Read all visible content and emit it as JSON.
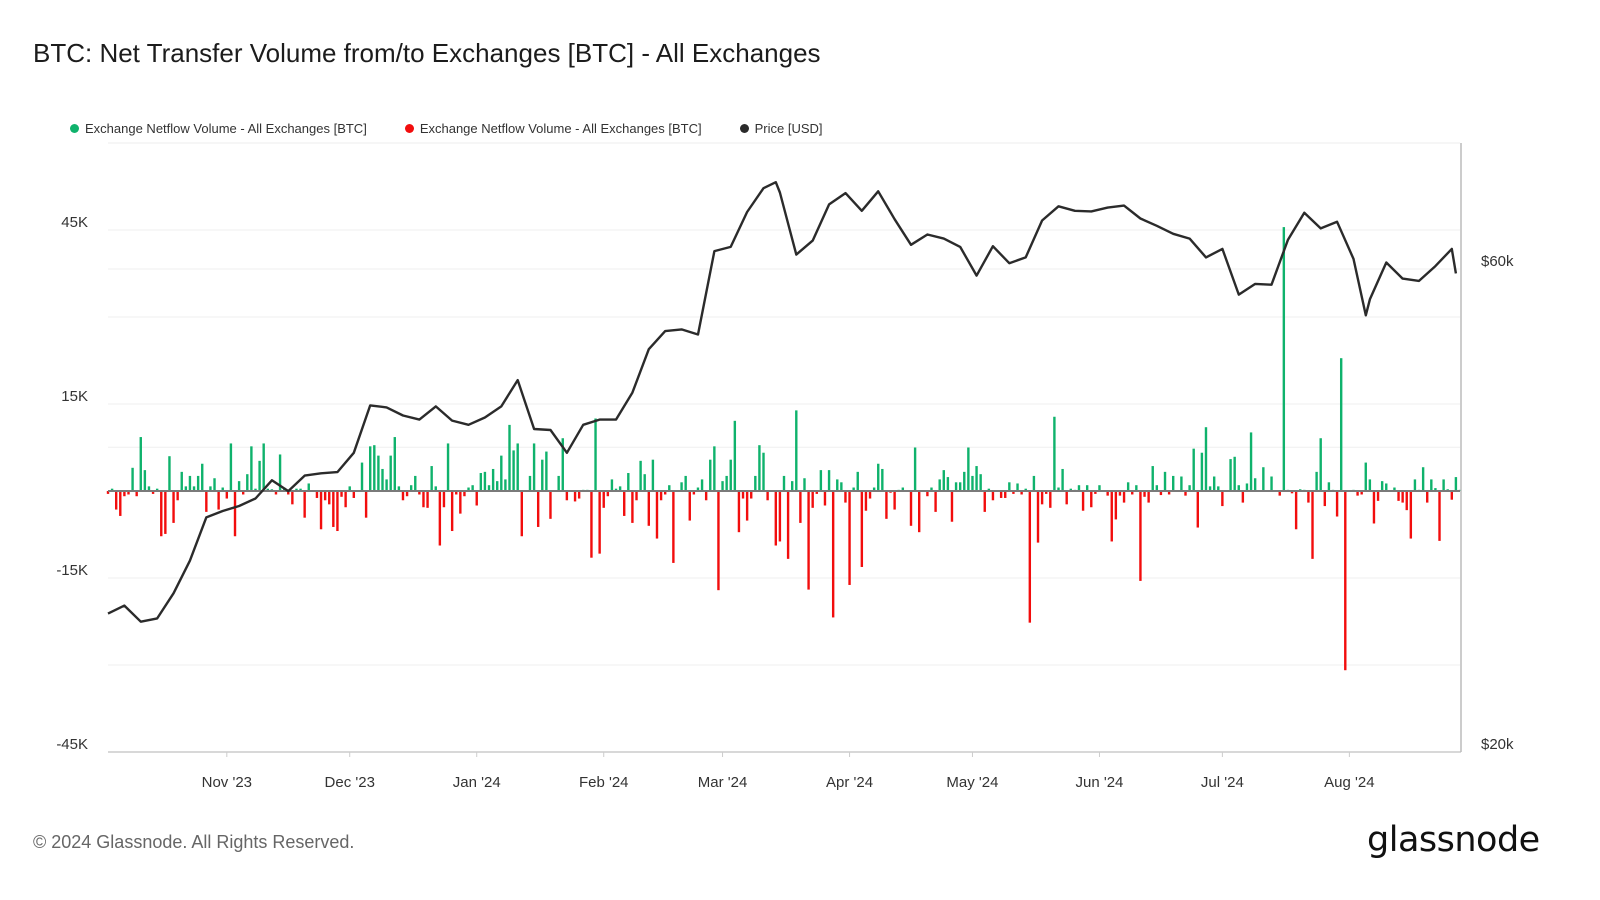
{
  "chart_data": {
    "type": "bar+line",
    "title": "BTC: Net Transfer Volume from/to Exchanges [BTC] - All Exchanges",
    "legend_position": "top-left",
    "legend": [
      {
        "label": "Exchange Netflow Volume - All Exchanges [BTC]",
        "color": "#0fb26c"
      },
      {
        "label": "Exchange Netflow Volume - All Exchanges [BTC]",
        "color": "#f20d0d"
      },
      {
        "label": "Price [USD]",
        "color": "#2b2b2b"
      }
    ],
    "grid": true,
    "x_range": [
      "2023-10-03",
      "2024-08-28"
    ],
    "interval": "1 day",
    "x_ticks": [
      {
        "date": "2023-11-01",
        "label": "Nov '23"
      },
      {
        "date": "2023-12-01",
        "label": "Dec '23"
      },
      {
        "date": "2024-01-01",
        "label": "Jan '24"
      },
      {
        "date": "2024-02-01",
        "label": "Feb '24"
      },
      {
        "date": "2024-03-01",
        "label": "Mar '24"
      },
      {
        "date": "2024-04-01",
        "label": "Apr '24"
      },
      {
        "date": "2024-05-01",
        "label": "May '24"
      },
      {
        "date": "2024-06-01",
        "label": "Jun '24"
      },
      {
        "date": "2024-07-01",
        "label": "Jul '24"
      },
      {
        "date": "2024-08-01",
        "label": "Aug '24"
      }
    ],
    "y_left": {
      "unit": "BTC",
      "range": [
        -45000,
        45000
      ],
      "gridlines": [
        -45000,
        -30000,
        -15000,
        0,
        15000,
        30000,
        45000
      ],
      "ticks": [
        {
          "value": 45000,
          "label": "45K"
        },
        {
          "value": 15000,
          "label": "15K"
        },
        {
          "value": -15000,
          "label": "-15K"
        },
        {
          "value": -45000,
          "label": "-45K"
        }
      ]
    },
    "y_right": {
      "unit": "USD",
      "scale": "log",
      "range": [
        20000,
        80000
      ],
      "gridlines": [
        20000,
        40000,
        60000
      ],
      "ticks": [
        {
          "value": 60000,
          "label": "$60k"
        },
        {
          "value": 20000,
          "label": "$20k"
        }
      ]
    },
    "positive_color": "#0fb26c",
    "negative_color": "#f20d0d",
    "price_color": "#2b2b2b",
    "netflow_btc_thousands": [
      -0.5,
      0.4,
      -3.2,
      -4.3,
      -0.9,
      -0.6,
      4.0,
      -0.9,
      9.3,
      3.6,
      0.8,
      -0.5,
      0.4,
      -7.8,
      -7.4,
      6.0,
      -5.5,
      -1.6,
      3.3,
      0.8,
      2.6,
      0.8,
      2.6,
      4.7,
      -3.6,
      0.8,
      2.2,
      -3.2,
      0.6,
      -1.3,
      8.2,
      -7.8,
      1.7,
      -0.6,
      2.9,
      7.7,
      0.4,
      5.2,
      8.2,
      0.4,
      0.3,
      -0.6,
      6.3,
      0.6,
      -0.6,
      -2.3,
      0.4,
      0.4,
      -4.6,
      1.3,
      0.1,
      -1.2,
      -6.6,
      -1.6,
      -2.3,
      -6.2,
      -6.9,
      -1.0,
      -2.8,
      0.8,
      -1.2,
      0.1,
      4.9,
      -4.6,
      7.7,
      7.9,
      6.1,
      3.8,
      2.0,
      6.1,
      9.3,
      0.8,
      -1.6,
      -0.9,
      1.0,
      2.6,
      -0.6,
      -2.8,
      -2.9,
      4.3,
      0.8,
      -9.4,
      -2.8,
      8.2,
      -6.9,
      -0.6,
      -3.9,
      -0.9,
      0.6,
      1.0,
      -2.5,
      3.1,
      3.3,
      1.0,
      3.8,
      1.7,
      6.1,
      2.0,
      11.4,
      7.0,
      8.2,
      -7.8,
      0,
      2.6,
      8.2,
      -6.2,
      5.4,
      6.8,
      -4.8,
      0,
      2.6,
      9.1,
      -1.6,
      0.1,
      -1.8,
      -1.3,
      0.2,
      0.2,
      -11.5,
      12.5,
      -10.8,
      -2.9,
      -0.9,
      2.0,
      0.4,
      0.8,
      -4.3,
      3.1,
      -5.5,
      -1.6,
      5.2,
      2.9,
      -6.0,
      5.4,
      -8.2,
      -1.6,
      -0.6,
      1.0,
      -12.4,
      0,
      1.5,
      2.6,
      -5.1,
      -0.6,
      0.6,
      2.0,
      -1.6,
      5.4,
      7.7,
      -17.1,
      1.7,
      2.6,
      5.4,
      12.1,
      -7.1,
      -1.3,
      -5.1,
      -1.3,
      2.6,
      7.9,
      6.6,
      -1.6,
      0,
      -9.4,
      -8.7,
      2.6,
      -11.7,
      1.7,
      13.9,
      -5.5,
      2.2,
      -17.0,
      -2.9,
      -0.5,
      3.6,
      -2.5,
      3.6,
      -21.8,
      2.0,
      1.5,
      -2.0,
      -16.2,
      0.6,
      3.3,
      -13.1,
      -3.4,
      -1.3,
      0.6,
      4.7,
      3.8,
      -4.8,
      -0.3,
      -3.2,
      0.2,
      0.6,
      0,
      -6.0,
      7.5,
      -7.1,
      0,
      -0.9,
      0.6,
      -3.6,
      2.0,
      3.6,
      2.4,
      -5.3,
      1.5,
      1.5,
      3.3,
      7.5,
      2.6,
      4.3,
      2.9,
      -3.6,
      0.4,
      -1.6,
      0.1,
      -1.2,
      -1.2,
      1.5,
      -0.5,
      1.3,
      -0.6,
      0.4,
      -22.7,
      2.6,
      -8.9,
      -2.3,
      -0.5,
      -2.9,
      12.8,
      0.6,
      3.8,
      -2.3,
      0.4,
      0.2,
      1.0,
      -3.4,
      1.0,
      -2.8,
      -0.5,
      1.0,
      0,
      -0.8,
      -8.7,
      -4.9,
      -0.8,
      -2.0,
      1.5,
      -0.6,
      1.0,
      -15.5,
      -1.0,
      -2.0,
      4.3,
      1.0,
      -0.7,
      3.3,
      -0.6,
      2.6,
      0,
      2.5,
      -0.8,
      1.0,
      7.3,
      -6.3,
      6.6,
      11.0,
      0.8,
      2.5,
      0.8,
      -2.6,
      0,
      5.5,
      5.9,
      1.0,
      -2.0,
      1.3,
      10.1,
      2.2,
      0,
      4.1,
      0,
      2.5,
      0,
      -0.8,
      45.5,
      0.2,
      -0.4,
      -6.6,
      0.3,
      0.2,
      -2.0,
      -11.7,
      3.3,
      9.1,
      -2.6,
      1.5,
      0.2,
      -4.4,
      22.9,
      -30.9,
      0,
      0.2,
      -0.8,
      -0.6,
      4.9,
      2.0,
      -5.6,
      -1.7,
      1.7,
      1.3,
      0,
      0.6,
      -1.7,
      -2.0,
      -3.3,
      -8.2,
      2.0,
      0.2,
      4.1,
      -2.0,
      2.0,
      0.5,
      -8.6,
      2.0,
      0.3,
      -1.5,
      2.4,
      0.2
    ],
    "price_usd": [
      [
        "2023-10-03",
        27400
      ],
      [
        "2023-10-07",
        27900
      ],
      [
        "2023-10-11",
        26900
      ],
      [
        "2023-10-15",
        27100
      ],
      [
        "2023-10-19",
        28700
      ],
      [
        "2023-10-23",
        30900
      ],
      [
        "2023-10-27",
        34100
      ],
      [
        "2023-10-31",
        34600
      ],
      [
        "2023-11-04",
        35000
      ],
      [
        "2023-11-08",
        35600
      ],
      [
        "2023-11-12",
        37100
      ],
      [
        "2023-11-16",
        36200
      ],
      [
        "2023-11-20",
        37500
      ],
      [
        "2023-11-24",
        37700
      ],
      [
        "2023-11-28",
        37800
      ],
      [
        "2023-12-02",
        39500
      ],
      [
        "2023-12-06",
        44000
      ],
      [
        "2023-12-10",
        43800
      ],
      [
        "2023-12-14",
        43000
      ],
      [
        "2023-12-18",
        42600
      ],
      [
        "2023-12-22",
        43900
      ],
      [
        "2023-12-26",
        42500
      ],
      [
        "2023-12-30",
        42100
      ],
      [
        "2024-01-03",
        42800
      ],
      [
        "2024-01-07",
        43900
      ],
      [
        "2024-01-11",
        46600
      ],
      [
        "2024-01-15",
        41700
      ],
      [
        "2024-01-19",
        41600
      ],
      [
        "2024-01-23",
        39500
      ],
      [
        "2024-01-27",
        42100
      ],
      [
        "2024-01-31",
        42600
      ],
      [
        "2024-02-04",
        42600
      ],
      [
        "2024-02-08",
        45300
      ],
      [
        "2024-02-12",
        50000
      ],
      [
        "2024-02-16",
        52100
      ],
      [
        "2024-02-20",
        52300
      ],
      [
        "2024-02-24",
        51700
      ],
      [
        "2024-02-28",
        62500
      ],
      [
        "2024-03-03",
        63100
      ],
      [
        "2024-03-07",
        68300
      ],
      [
        "2024-03-11",
        72100
      ],
      [
        "2024-03-14",
        73100
      ],
      [
        "2024-03-15",
        71400
      ],
      [
        "2024-03-19",
        62000
      ],
      [
        "2024-03-23",
        64000
      ],
      [
        "2024-03-27",
        69500
      ],
      [
        "2024-03-31",
        71300
      ],
      [
        "2024-04-04",
        68500
      ],
      [
        "2024-04-08",
        71600
      ],
      [
        "2024-04-12",
        67200
      ],
      [
        "2024-04-16",
        63400
      ],
      [
        "2024-04-20",
        64900
      ],
      [
        "2024-04-24",
        64300
      ],
      [
        "2024-04-28",
        63100
      ],
      [
        "2024-05-02",
        59100
      ],
      [
        "2024-05-06",
        63200
      ],
      [
        "2024-05-10",
        60800
      ],
      [
        "2024-05-14",
        61600
      ],
      [
        "2024-05-18",
        67000
      ],
      [
        "2024-05-22",
        69200
      ],
      [
        "2024-05-26",
        68500
      ],
      [
        "2024-05-30",
        68400
      ],
      [
        "2024-06-03",
        69000
      ],
      [
        "2024-06-07",
        69300
      ],
      [
        "2024-06-11",
        67300
      ],
      [
        "2024-06-15",
        66200
      ],
      [
        "2024-06-19",
        65000
      ],
      [
        "2024-06-23",
        64300
      ],
      [
        "2024-06-27",
        61600
      ],
      [
        "2024-07-01",
        62800
      ],
      [
        "2024-07-05",
        56600
      ],
      [
        "2024-07-09",
        58000
      ],
      [
        "2024-07-13",
        57900
      ],
      [
        "2024-07-17",
        64100
      ],
      [
        "2024-07-21",
        68200
      ],
      [
        "2024-07-25",
        65800
      ],
      [
        "2024-07-29",
        66800
      ],
      [
        "2024-08-02",
        61400
      ],
      [
        "2024-08-05",
        54000
      ],
      [
        "2024-08-06",
        56000
      ],
      [
        "2024-08-10",
        60900
      ],
      [
        "2024-08-14",
        58700
      ],
      [
        "2024-08-18",
        58400
      ],
      [
        "2024-08-22",
        60400
      ],
      [
        "2024-08-26",
        62800
      ],
      [
        "2024-08-27",
        59400
      ]
    ]
  },
  "footer": {
    "copyright": "© 2024 Glassnode. All Rights Reserved.",
    "logo_text": "glassnode"
  }
}
